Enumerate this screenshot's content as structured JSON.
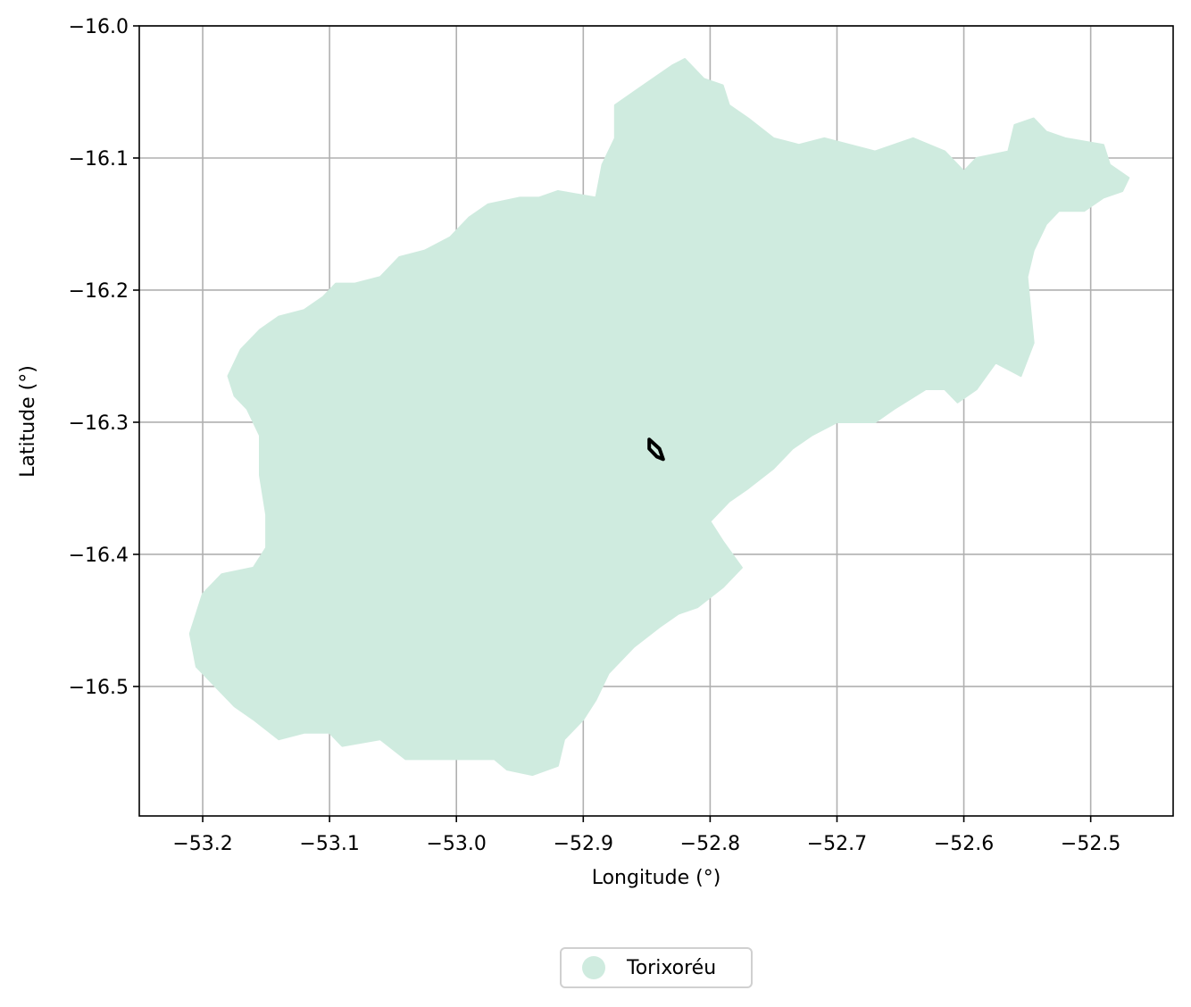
{
  "chart_data": {
    "type": "map",
    "xlabel": "Longitude (°)",
    "ylabel": "Latitude (°)",
    "xlim": [
      -53.25,
      -52.435
    ],
    "ylim": [
      -16.598,
      -16.0
    ],
    "xticks": [
      -53.2,
      -53.1,
      -53.0,
      -52.9,
      -52.8,
      -52.7,
      -52.6,
      -52.5
    ],
    "xtick_labels": [
      "−53.2",
      "−53.1",
      "−53.0",
      "−52.9",
      "−52.8",
      "−52.7",
      "−52.6",
      "−52.5"
    ],
    "yticks": [
      -16.0,
      -16.1,
      -16.2,
      -16.3,
      -16.4,
      -16.5
    ],
    "ytick_labels": [
      "−16.0",
      "−16.1",
      "−16.2",
      "−16.3",
      "−16.4",
      "−16.5"
    ],
    "grid": true,
    "legend_position": "bottom-center",
    "region": {
      "name": "Torixoréu",
      "color": "#cfebdf",
      "boundary": [
        [
          -52.92,
          -16.125
        ],
        [
          -52.89,
          -16.13
        ],
        [
          -52.885,
          -16.105
        ],
        [
          -52.875,
          -16.085
        ],
        [
          -52.875,
          -16.06
        ],
        [
          -52.86,
          -16.05
        ],
        [
          -52.845,
          -16.04
        ],
        [
          -52.83,
          -16.03
        ],
        [
          -52.82,
          -16.025
        ],
        [
          -52.805,
          -16.04
        ],
        [
          -52.79,
          -16.045
        ],
        [
          -52.785,
          -16.06
        ],
        [
          -52.77,
          -16.07
        ],
        [
          -52.75,
          -16.085
        ],
        [
          -52.73,
          -16.09
        ],
        [
          -52.71,
          -16.085
        ],
        [
          -52.69,
          -16.09
        ],
        [
          -52.67,
          -16.095
        ],
        [
          -52.64,
          -16.085
        ],
        [
          -52.615,
          -16.095
        ],
        [
          -52.6,
          -16.11
        ],
        [
          -52.59,
          -16.1
        ],
        [
          -52.565,
          -16.095
        ],
        [
          -52.56,
          -16.075
        ],
        [
          -52.545,
          -16.07
        ],
        [
          -52.535,
          -16.08
        ],
        [
          -52.52,
          -16.085
        ],
        [
          -52.49,
          -16.09
        ],
        [
          -52.485,
          -16.105
        ],
        [
          -52.47,
          -16.115
        ],
        [
          -52.475,
          -16.125
        ],
        [
          -52.49,
          -16.13
        ],
        [
          -52.505,
          -16.14
        ],
        [
          -52.525,
          -16.14
        ],
        [
          -52.535,
          -16.15
        ],
        [
          -52.545,
          -16.17
        ],
        [
          -52.55,
          -16.19
        ],
        [
          -52.545,
          -16.24
        ],
        [
          -52.555,
          -16.265
        ],
        [
          -52.565,
          -16.26
        ],
        [
          -52.575,
          -16.255
        ],
        [
          -52.59,
          -16.275
        ],
        [
          -52.605,
          -16.285
        ],
        [
          -52.615,
          -16.275
        ],
        [
          -52.63,
          -16.275
        ],
        [
          -52.655,
          -16.29
        ],
        [
          -52.67,
          -16.3
        ],
        [
          -52.69,
          -16.3
        ],
        [
          -52.7,
          -16.3
        ],
        [
          -52.72,
          -16.31
        ],
        [
          -52.735,
          -16.32
        ],
        [
          -52.75,
          -16.335
        ],
        [
          -52.77,
          -16.35
        ],
        [
          -52.785,
          -16.36
        ],
        [
          -52.8,
          -16.375
        ],
        [
          -52.79,
          -16.39
        ],
        [
          -52.775,
          -16.41
        ],
        [
          -52.79,
          -16.425
        ],
        [
          -52.81,
          -16.44
        ],
        [
          -52.825,
          -16.445
        ],
        [
          -52.84,
          -16.455
        ],
        [
          -52.86,
          -16.47
        ],
        [
          -52.88,
          -16.49
        ],
        [
          -52.89,
          -16.51
        ],
        [
          -52.9,
          -16.525
        ],
        [
          -52.915,
          -16.54
        ],
        [
          -52.92,
          -16.56
        ],
        [
          -52.94,
          -16.567
        ],
        [
          -52.96,
          -16.563
        ],
        [
          -52.97,
          -16.555
        ],
        [
          -52.99,
          -16.555
        ],
        [
          -53.02,
          -16.555
        ],
        [
          -53.04,
          -16.555
        ],
        [
          -53.06,
          -16.54
        ],
        [
          -53.09,
          -16.545
        ],
        [
          -53.1,
          -16.535
        ],
        [
          -53.12,
          -16.535
        ],
        [
          -53.14,
          -16.54
        ],
        [
          -53.16,
          -16.525
        ],
        [
          -53.175,
          -16.515
        ],
        [
          -53.19,
          -16.5
        ],
        [
          -53.205,
          -16.485
        ],
        [
          -53.21,
          -16.46
        ],
        [
          -53.2,
          -16.43
        ],
        [
          -53.185,
          -16.415
        ],
        [
          -53.16,
          -16.41
        ],
        [
          -53.15,
          -16.395
        ],
        [
          -53.15,
          -16.37
        ],
        [
          -53.155,
          -16.34
        ],
        [
          -53.155,
          -16.31
        ],
        [
          -53.165,
          -16.29
        ],
        [
          -53.175,
          -16.28
        ],
        [
          -53.18,
          -16.265
        ],
        [
          -53.17,
          -16.245
        ],
        [
          -53.155,
          -16.23
        ],
        [
          -53.14,
          -16.22
        ],
        [
          -53.12,
          -16.215
        ],
        [
          -53.105,
          -16.205
        ],
        [
          -53.095,
          -16.195
        ],
        [
          -53.08,
          -16.195
        ],
        [
          -53.06,
          -16.19
        ],
        [
          -53.045,
          -16.175
        ],
        [
          -53.025,
          -16.17
        ],
        [
          -53.005,
          -16.16
        ],
        [
          -52.99,
          -16.145
        ],
        [
          -52.975,
          -16.135
        ],
        [
          -52.95,
          -16.13
        ],
        [
          -52.935,
          -16.13
        ]
      ]
    },
    "highlight": {
      "color": "#000000",
      "boundary": [
        [
          -52.848,
          -16.313
        ],
        [
          -52.84,
          -16.32
        ],
        [
          -52.837,
          -16.328
        ],
        [
          -52.842,
          -16.326
        ],
        [
          -52.848,
          -16.32
        ]
      ]
    }
  },
  "legend": {
    "label": "Torixoréu"
  }
}
